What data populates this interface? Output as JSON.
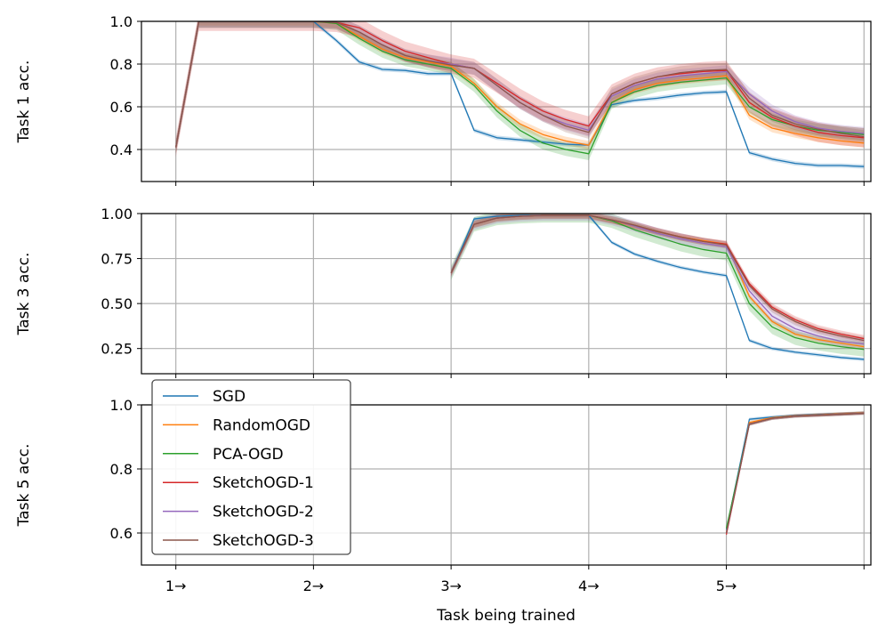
{
  "chart_data": {
    "type": "line",
    "xlabel": "Task being trained",
    "x_ticks": [
      {
        "x": 0,
        "label": "1→"
      },
      {
        "x": 1,
        "label": "2→"
      },
      {
        "x": 2,
        "label": "3→"
      },
      {
        "x": 3,
        "label": "4→"
      },
      {
        "x": 4,
        "label": "5→"
      },
      {
        "x": 5,
        "label": ""
      }
    ],
    "xlim": [
      -0.25,
      5.05
    ],
    "x": [
      0,
      0.167,
      0.333,
      0.5,
      0.667,
      0.833,
      1,
      1.167,
      1.333,
      1.5,
      1.667,
      1.833,
      2,
      2.167,
      2.333,
      2.5,
      2.667,
      2.833,
      3,
      3.167,
      3.333,
      3.5,
      3.667,
      3.833,
      4,
      4.167,
      4.333,
      4.5,
      4.667,
      4.833,
      5
    ],
    "legend": {
      "placement": "upper-left of third panel",
      "entries": [
        "SGD",
        "RandomOGD",
        "PCA-OGD",
        "SketchOGD-1",
        "SketchOGD-2",
        "SketchOGD-3"
      ]
    },
    "colors": {
      "SGD": "#1f77b4",
      "RandomOGD": "#ff7f0e",
      "PCA-OGD": "#2ca02c",
      "SketchOGD-1": "#d62728",
      "SketchOGD-2": "#9467bd",
      "SketchOGD-3": "#8c564b"
    },
    "panels": [
      {
        "ylabel": "Task 1 acc.",
        "ylim": [
          0.25,
          1.0
        ],
        "yticks": [
          {
            "v": 0.4,
            "label": "0.4"
          },
          {
            "v": 0.6,
            "label": "0.6"
          },
          {
            "v": 0.8,
            "label": "0.8"
          },
          {
            "v": 1.0,
            "label": "1.0"
          }
        ],
        "start_index": 0,
        "series": [
          {
            "name": "SGD",
            "values": [
              0.41,
              1.0,
              1.0,
              1.0,
              1.0,
              1.0,
              1.0,
              0.91,
              0.81,
              0.775,
              0.77,
              0.755,
              0.755,
              0.49,
              0.455,
              0.445,
              0.435,
              0.425,
              0.42,
              0.61,
              0.63,
              0.64,
              0.655,
              0.665,
              0.67,
              0.385,
              0.355,
              0.335,
              0.325,
              0.325,
              0.32
            ],
            "band": 0.01
          },
          {
            "name": "RandomOGD",
            "values": [
              0.41,
              1.0,
              1.0,
              1.0,
              1.0,
              1.0,
              1.0,
              0.99,
              0.93,
              0.87,
              0.83,
              0.81,
              0.79,
              0.71,
              0.6,
              0.52,
              0.47,
              0.44,
              0.42,
              0.62,
              0.68,
              0.71,
              0.725,
              0.735,
              0.745,
              0.56,
              0.5,
              0.475,
              0.455,
              0.44,
              0.43
            ],
            "band": 0.02
          },
          {
            "name": "PCA-OGD",
            "values": [
              0.41,
              1.0,
              1.0,
              1.0,
              1.0,
              1.0,
              1.0,
              0.99,
              0.92,
              0.86,
              0.82,
              0.8,
              0.78,
              0.7,
              0.58,
              0.49,
              0.43,
              0.4,
              0.38,
              0.62,
              0.67,
              0.7,
              0.715,
              0.725,
              0.735,
              0.6,
              0.54,
              0.51,
              0.49,
              0.48,
              0.47
            ],
            "band": 0.03
          },
          {
            "name": "SketchOGD-1",
            "values": [
              0.41,
              1.0,
              1.0,
              1.0,
              1.0,
              1.0,
              1.0,
              0.995,
              0.97,
              0.91,
              0.86,
              0.83,
              0.8,
              0.78,
              0.71,
              0.64,
              0.58,
              0.54,
              0.51,
              0.66,
              0.71,
              0.74,
              0.755,
              0.765,
              0.77,
              0.62,
              0.55,
              0.51,
              0.48,
              0.465,
              0.455
            ],
            "band": 0.045
          },
          {
            "name": "SketchOGD-2",
            "values": [
              0.41,
              1.0,
              1.0,
              1.0,
              1.0,
              1.0,
              1.0,
              0.995,
              0.95,
              0.89,
              0.84,
              0.815,
              0.8,
              0.78,
              0.7,
              0.62,
              0.56,
              0.52,
              0.49,
              0.65,
              0.7,
              0.73,
              0.745,
              0.755,
              0.765,
              0.66,
              0.58,
              0.53,
              0.5,
              0.485,
              0.475
            ],
            "band": 0.03
          },
          {
            "name": "SketchOGD-3",
            "values": [
              0.41,
              1.0,
              1.0,
              1.0,
              1.0,
              1.0,
              1.0,
              0.995,
              0.95,
              0.89,
              0.84,
              0.815,
              0.795,
              0.78,
              0.7,
              0.62,
              0.56,
              0.51,
              0.48,
              0.66,
              0.71,
              0.74,
              0.76,
              0.77,
              0.775,
              0.64,
              0.56,
              0.52,
              0.495,
              0.475,
              0.46
            ],
            "band": 0.03
          }
        ]
      },
      {
        "ylabel": "Task 3 acc.",
        "ylim": [
          0.11,
          1.0
        ],
        "yticks": [
          {
            "v": 0.25,
            "label": "0.25"
          },
          {
            "v": 0.5,
            "label": "0.50"
          },
          {
            "v": 0.75,
            "label": "0.75"
          },
          {
            "v": 1.0,
            "label": "1.00"
          }
        ],
        "start_index": 12,
        "series": [
          {
            "name": "SGD",
            "values": [
              0.67,
              0.97,
              0.985,
              0.99,
              0.99,
              0.99,
              0.99,
              0.84,
              0.775,
              0.735,
              0.7,
              0.675,
              0.655,
              0.295,
              0.25,
              0.23,
              0.215,
              0.2,
              0.19
            ],
            "band": 0.01
          },
          {
            "name": "RandomOGD",
            "values": [
              0.67,
              0.94,
              0.975,
              0.985,
              0.99,
              0.99,
              0.99,
              0.96,
              0.93,
              0.9,
              0.87,
              0.85,
              0.83,
              0.54,
              0.4,
              0.33,
              0.3,
              0.28,
              0.26
            ],
            "band": 0.015
          },
          {
            "name": "PCA-OGD",
            "values": [
              0.67,
              0.94,
              0.975,
              0.985,
              0.99,
              0.99,
              0.99,
              0.96,
              0.91,
              0.87,
              0.83,
              0.8,
              0.78,
              0.5,
              0.37,
              0.31,
              0.28,
              0.26,
              0.245
            ],
            "band": 0.04
          },
          {
            "name": "SketchOGD-1",
            "values": [
              0.67,
              0.94,
              0.975,
              0.985,
              0.99,
              0.99,
              0.99,
              0.965,
              0.935,
              0.9,
              0.87,
              0.845,
              0.83,
              0.61,
              0.48,
              0.41,
              0.36,
              0.33,
              0.305
            ],
            "band": 0.02
          },
          {
            "name": "SketchOGD-2",
            "values": [
              0.67,
              0.94,
              0.975,
              0.985,
              0.99,
              0.99,
              0.99,
              0.965,
              0.93,
              0.89,
              0.86,
              0.835,
              0.815,
              0.57,
              0.43,
              0.36,
              0.32,
              0.29,
              0.275
            ],
            "band": 0.03
          },
          {
            "name": "SketchOGD-3",
            "values": [
              0.67,
              0.94,
              0.975,
              0.985,
              0.99,
              0.99,
              0.99,
              0.965,
              0.935,
              0.9,
              0.87,
              0.845,
              0.825,
              0.6,
              0.47,
              0.4,
              0.35,
              0.32,
              0.295
            ],
            "band": 0.02
          }
        ]
      },
      {
        "ylabel": "Task 5 acc.",
        "ylim": [
          0.5,
          1.0
        ],
        "yticks": [
          {
            "v": 0.6,
            "label": "0.6"
          },
          {
            "v": 0.8,
            "label": "0.8"
          },
          {
            "v": 1.0,
            "label": "1.0"
          }
        ],
        "start_index": 24,
        "series": [
          {
            "name": "SGD",
            "values": [
              0.61,
              0.955,
              0.962,
              0.967,
              0.97,
              0.972,
              0.975
            ],
            "band": 0.005
          },
          {
            "name": "RandomOGD",
            "values": [
              0.6,
              0.945,
              0.96,
              0.966,
              0.969,
              0.972,
              0.975
            ],
            "band": 0.005
          },
          {
            "name": "PCA-OGD",
            "values": [
              0.615,
              0.94,
              0.958,
              0.965,
              0.968,
              0.971,
              0.974
            ],
            "band": 0.005
          },
          {
            "name": "SketchOGD-1",
            "values": [
              0.595,
              0.94,
              0.958,
              0.965,
              0.968,
              0.971,
              0.974
            ],
            "band": 0.005
          },
          {
            "name": "SketchOGD-2",
            "values": [
              0.6,
              0.94,
              0.958,
              0.965,
              0.968,
              0.971,
              0.974
            ],
            "band": 0.005
          },
          {
            "name": "SketchOGD-3",
            "values": [
              0.6,
              0.94,
              0.958,
              0.965,
              0.968,
              0.971,
              0.974
            ],
            "band": 0.005
          }
        ]
      }
    ]
  }
}
